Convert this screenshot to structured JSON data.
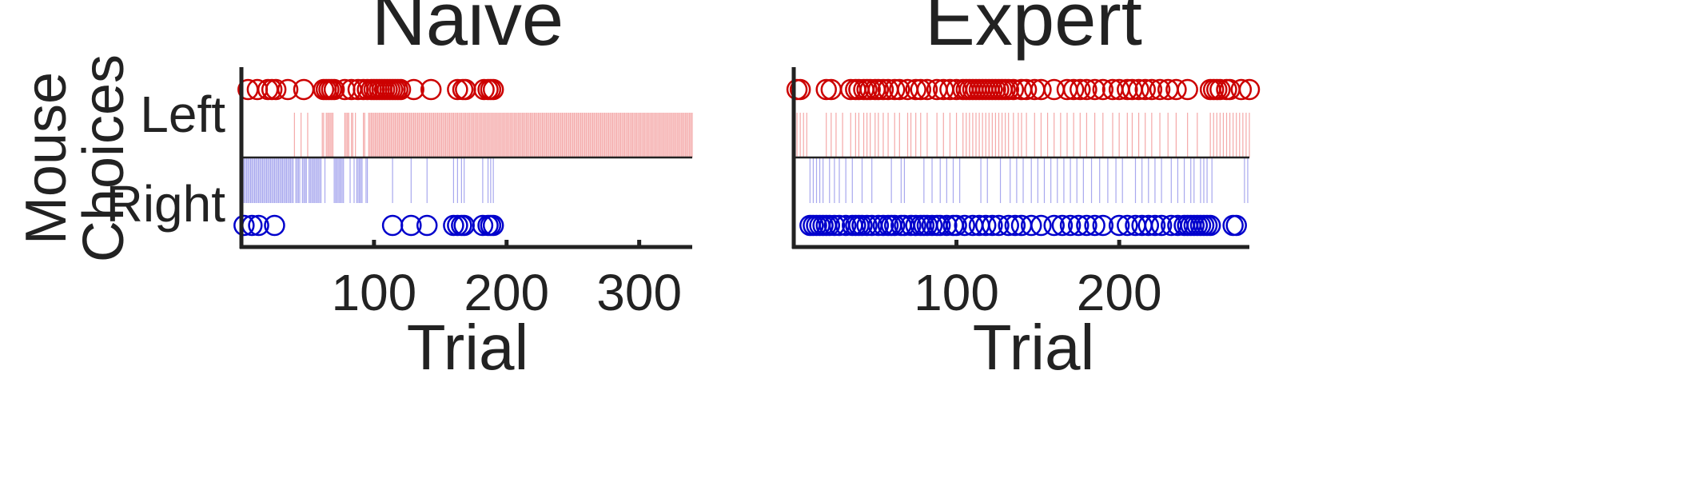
{
  "ylabel_lines": [
    "Mouse",
    "Choices"
  ],
  "colors": {
    "left": "#cc0000",
    "right": "#0000cc",
    "left_line": "#f4a8a8",
    "right_line": "#a8a8ee",
    "axis": "#222222",
    "text": "#222222"
  },
  "chart_data": [
    {
      "type": "scatter",
      "title": "Naive",
      "xlabel": "Trial",
      "ylabel": "Mouse Choices",
      "categories": [
        "Left",
        "Right"
      ],
      "xlim": [
        0,
        340
      ],
      "xticks": [
        100,
        200,
        300
      ],
      "grid": false,
      "series": [
        {
          "name": "Left",
          "marker": "open-circle",
          "values": [
            5,
            12,
            20,
            23,
            26,
            35,
            47,
            62,
            64,
            66,
            68,
            70,
            78,
            83,
            88,
            92,
            95,
            98,
            100,
            102,
            104,
            106,
            108,
            110,
            112,
            114,
            116,
            118,
            120,
            130,
            143,
            163,
            167,
            169,
            183,
            186,
            188,
            190
          ]
        },
        {
          "name": "Right",
          "marker": "open-circle",
          "values": [
            2,
            8,
            13,
            25,
            114,
            128,
            140,
            160,
            163,
            166,
            168,
            182,
            186,
            188,
            190
          ]
        }
      ],
      "trial_choices": {
        "left_trials": [
          40,
          45,
          50,
          61,
          62,
          64,
          65,
          66,
          67,
          68,
          69,
          78,
          79,
          80,
          81,
          83,
          84,
          86,
          92,
          93,
          96,
          97,
          98,
          99,
          100,
          101,
          102,
          103,
          104,
          105,
          106,
          107,
          108,
          109,
          110,
          111,
          112,
          113,
          114,
          115,
          116,
          117,
          118,
          119,
          120,
          121,
          122,
          123,
          124,
          125,
          126,
          127,
          128,
          129,
          130,
          131,
          132,
          133,
          134,
          135,
          136,
          137,
          138,
          139,
          140,
          141,
          142,
          143,
          144,
          145,
          146,
          147,
          148,
          149,
          150,
          151,
          152,
          153,
          154,
          155,
          156,
          157,
          158,
          159,
          160,
          161,
          162,
          163,
          164,
          165,
          166,
          167,
          168,
          169,
          170,
          171,
          172,
          173,
          174,
          175,
          176,
          177,
          178,
          179,
          180,
          181,
          182,
          183,
          184,
          185,
          186,
          187,
          188,
          189,
          190,
          191,
          192,
          193,
          194,
          195,
          196,
          197,
          198,
          199,
          200,
          201,
          202,
          203,
          204,
          205,
          206,
          207,
          208,
          209,
          210,
          211,
          212,
          213,
          214,
          215,
          216,
          217,
          218,
          219,
          220,
          221,
          222,
          223,
          224,
          225,
          226,
          227,
          228,
          229,
          230,
          231,
          232,
          233,
          234,
          235,
          236,
          237,
          238,
          239,
          240,
          241,
          242,
          243,
          244,
          245,
          246,
          247,
          248,
          249,
          250,
          251,
          252,
          253,
          254,
          255,
          256,
          257,
          258,
          259,
          260,
          261,
          262,
          263,
          264,
          265,
          266,
          267,
          268,
          269,
          270,
          271,
          272,
          273,
          274,
          275,
          276,
          277,
          278,
          279,
          280,
          281,
          282,
          283,
          284,
          285,
          286,
          287,
          288,
          289,
          290,
          291,
          292,
          293,
          294,
          295,
          296,
          297,
          298,
          299,
          300,
          301,
          302,
          303,
          304,
          305,
          306,
          307,
          308,
          309,
          310,
          311,
          312,
          313,
          314,
          315,
          316,
          317,
          318,
          319,
          320,
          321,
          322,
          323,
          324,
          325,
          326,
          327,
          328,
          329,
          330,
          331,
          332,
          333,
          334,
          335,
          336,
          337,
          338,
          339,
          340
        ],
        "right_trials": [
          1,
          2,
          3,
          4,
          5,
          6,
          7,
          8,
          9,
          10,
          11,
          12,
          13,
          14,
          15,
          16,
          17,
          18,
          19,
          20,
          21,
          22,
          23,
          24,
          25,
          26,
          27,
          28,
          29,
          30,
          31,
          32,
          33,
          34,
          35,
          36,
          37,
          38,
          39,
          41,
          42,
          43,
          44,
          46,
          47,
          48,
          49,
          51,
          52,
          53,
          54,
          55,
          56,
          57,
          58,
          59,
          60,
          63,
          70,
          71,
          72,
          73,
          74,
          75,
          76,
          77,
          82,
          85,
          87,
          88,
          89,
          90,
          91,
          94,
          95,
          114,
          128,
          140,
          160,
          163,
          166,
          168,
          182,
          186,
          188,
          190
        ]
      }
    },
    {
      "type": "scatter",
      "title": "Expert",
      "xlabel": "Trial",
      "ylabel": "",
      "categories": [
        "Left",
        "Right"
      ],
      "xlim": [
        0,
        280
      ],
      "xticks": [
        100,
        200
      ],
      "grid": false,
      "series": [
        {
          "name": "Left",
          "marker": "open-circle",
          "values": [
            2,
            4,
            20,
            23,
            35,
            38,
            40,
            43,
            45,
            47,
            50,
            52,
            55,
            58,
            62,
            65,
            70,
            75,
            78,
            82,
            88,
            92,
            96,
            100,
            104,
            106,
            108,
            110,
            112,
            114,
            116,
            118,
            120,
            122,
            124,
            126,
            128,
            130,
            132,
            135,
            140,
            143,
            148,
            152,
            160,
            168,
            172,
            176,
            180,
            185,
            190,
            196,
            200,
            205,
            208,
            212,
            216,
            220,
            225,
            230,
            235,
            242,
            256,
            258,
            260,
            262,
            266,
            268,
            275,
            280
          ]
        },
        {
          "name": "Right",
          "marker": "open-circle",
          "values": [
            10,
            12,
            14,
            16,
            18,
            20,
            22,
            25,
            28,
            32,
            36,
            38,
            40,
            42,
            45,
            48,
            52,
            55,
            58,
            60,
            62,
            66,
            68,
            72,
            75,
            78,
            80,
            82,
            85,
            88,
            90,
            94,
            98,
            100,
            105,
            110,
            114,
            118,
            122,
            126,
            132,
            136,
            140,
            146,
            152,
            160,
            165,
            170,
            175,
            180,
            185,
            190,
            200,
            205,
            210,
            214,
            218,
            222,
            226,
            232,
            236,
            240,
            242,
            244,
            246,
            248,
            250,
            252,
            254,
            256,
            270,
            272
          ]
        }
      ],
      "trial_choices": {
        "left_trials": [
          2,
          4,
          6,
          8,
          20,
          23,
          26,
          30,
          35,
          38,
          40,
          43,
          45,
          47,
          50,
          52,
          55,
          58,
          62,
          65,
          70,
          72,
          75,
          78,
          82,
          88,
          92,
          96,
          100,
          104,
          106,
          108,
          110,
          112,
          114,
          116,
          118,
          120,
          122,
          124,
          126,
          128,
          130,
          132,
          135,
          138,
          140,
          143,
          148,
          152,
          156,
          160,
          164,
          168,
          172,
          176,
          180,
          185,
          190,
          196,
          200,
          205,
          208,
          212,
          216,
          220,
          225,
          230,
          235,
          242,
          248,
          256,
          258,
          260,
          262,
          264,
          266,
          268,
          270,
          272,
          274,
          276,
          278,
          280
        ],
        "right_trials": [
          10,
          12,
          14,
          16,
          18,
          22,
          25,
          28,
          32,
          36,
          42,
          48,
          60,
          66,
          68,
          80,
          85,
          90,
          94,
          98,
          102,
          115,
          119,
          127,
          133,
          137,
          141,
          146,
          150,
          154,
          158,
          162,
          166,
          170,
          174,
          178,
          183,
          188,
          193,
          198,
          202,
          210,
          214,
          218,
          222,
          226,
          232,
          236,
          240,
          244,
          246,
          250,
          252,
          254,
          257,
          277,
          279
        ]
      }
    }
  ]
}
